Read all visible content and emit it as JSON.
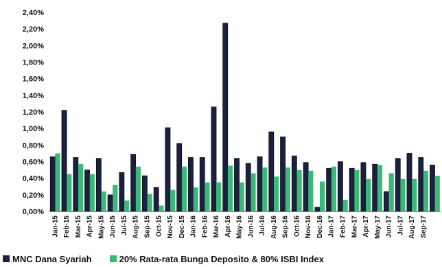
{
  "chart_data": {
    "type": "bar",
    "yticks": [
      "0,00%",
      "0,20%",
      "0,40%",
      "0,60%",
      "0,80%",
      "1,00%",
      "1,20%",
      "1,40%",
      "1,60%",
      "1,80%",
      "2,00%",
      "2,20%",
      "2,40%"
    ],
    "ylim": [
      0,
      2.4
    ],
    "categories": [
      "Jan-15",
      "Feb-15",
      "Mar-15",
      "Apr-15",
      "May-15",
      "Jun-15",
      "Jul-15",
      "Aug-15",
      "Sep-15",
      "Oct-15",
      "Nov-15",
      "Dec-15",
      "Jan-16",
      "Feb-16",
      "Mar-16",
      "Apr-16",
      "May-16",
      "Jun-16",
      "Jul-16",
      "Aug-16",
      "Sep-16",
      "Oct-16",
      "Nov-16",
      "Dec-16",
      "Jan-17",
      "Feb-17",
      "Mar-17",
      "Apr-17",
      "May-17",
      "Jun-17",
      "Jul-17",
      "Aug-17",
      "Sep-17",
      ""
    ],
    "tick_labels": [
      "Jan-15",
      "Feb-15",
      "Mar-15",
      "Apr-15",
      "May-15",
      "Jun-15",
      "Jul-15",
      "Aug-15",
      "Sep-15",
      "Oct-15",
      "Nov-15",
      "Dec-15",
      "Jan-16",
      "Feb-16",
      "Mar-16",
      "Apr-16",
      "May-16",
      "Jun-16",
      "Jul-16",
      "Aug-16",
      "Sep-16",
      "Oct-16",
      "Nov-16",
      "Dec-16",
      "Jan-17",
      "Feb-17",
      "Mar-17",
      "Apr-17",
      "May-17",
      "Jun-17",
      "Jul-17",
      "Aug-17",
      "Sep-17"
    ],
    "series": [
      {
        "name": "MNC Dana Syariah",
        "color": "#1b2040",
        "values": [
          0.66,
          1.22,
          0.65,
          0.5,
          0.64,
          0.2,
          0.47,
          0.69,
          0.43,
          0.29,
          1.01,
          0.82,
          0.65,
          0.65,
          1.26,
          2.27,
          0.64,
          0.58,
          0.66,
          0.96,
          0.9,
          0.67,
          0.59,
          0.05,
          0.52,
          0.6,
          0.52,
          0.59,
          0.57,
          0.24,
          0.64,
          0.7,
          0.65,
          0.56
        ]
      },
      {
        "name": "20% Rata-rata Bunga Deposito & 80% ISBI Index",
        "color": "#3cb878",
        "values": [
          0.7,
          0.45,
          0.57,
          0.45,
          0.24,
          0.32,
          0.13,
          0.54,
          0.21,
          0.07,
          0.26,
          0.54,
          0.29,
          0.35,
          0.35,
          0.55,
          0.35,
          0.46,
          0.53,
          0.42,
          0.53,
          0.5,
          0.49,
          0.36,
          0.54,
          0.14,
          0.5,
          0.39,
          0.56,
          0.46,
          0.39,
          0.39,
          0.49,
          0.43
        ]
      }
    ],
    "grid": false,
    "legend": "bottom"
  }
}
